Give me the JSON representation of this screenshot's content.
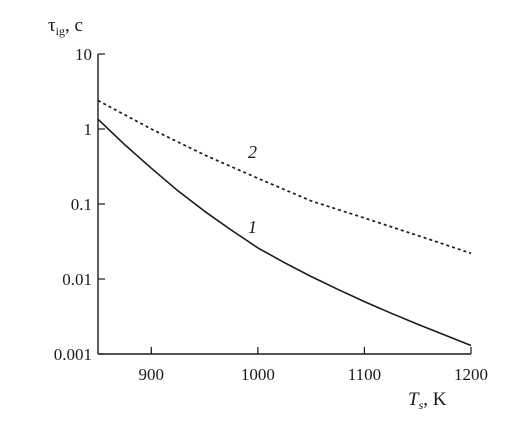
{
  "chart_data": {
    "type": "line",
    "xlim": [
      850,
      1200
    ],
    "ylim": [
      0.001,
      10
    ],
    "yscale": "log",
    "grid": false,
    "x_ticks": [
      "900",
      "1000",
      "1100",
      "1200"
    ],
    "y_ticks": [
      "0.001",
      "0.01",
      "0.1",
      "1",
      "10"
    ],
    "ylabel": {
      "main": "τ",
      "sub": "ig",
      "unit": ", c"
    },
    "xlabel": {
      "main": "T",
      "sub": "s",
      "unit": ", K"
    },
    "series": [
      {
        "label": "1",
        "style": "solid",
        "color": "#1a1a1a",
        "x": [
          850,
          875,
          900,
          925,
          950,
          975,
          1000,
          1025,
          1050,
          1075,
          1100,
          1125,
          1150,
          1175,
          1200
        ],
        "y": [
          1.35,
          0.62,
          0.3,
          0.15,
          0.08,
          0.045,
          0.026,
          0.0165,
          0.0108,
          0.0073,
          0.005,
          0.0035,
          0.0025,
          0.0018,
          0.0013
        ]
      },
      {
        "label": "2",
        "style": "dotted",
        "color": "#1a1a1a",
        "x": [
          850,
          900,
          950,
          1000,
          1050,
          1100,
          1150,
          1200
        ],
        "y": [
          2.4,
          1.0,
          0.45,
          0.22,
          0.11,
          0.065,
          0.038,
          0.022
        ]
      }
    ]
  }
}
